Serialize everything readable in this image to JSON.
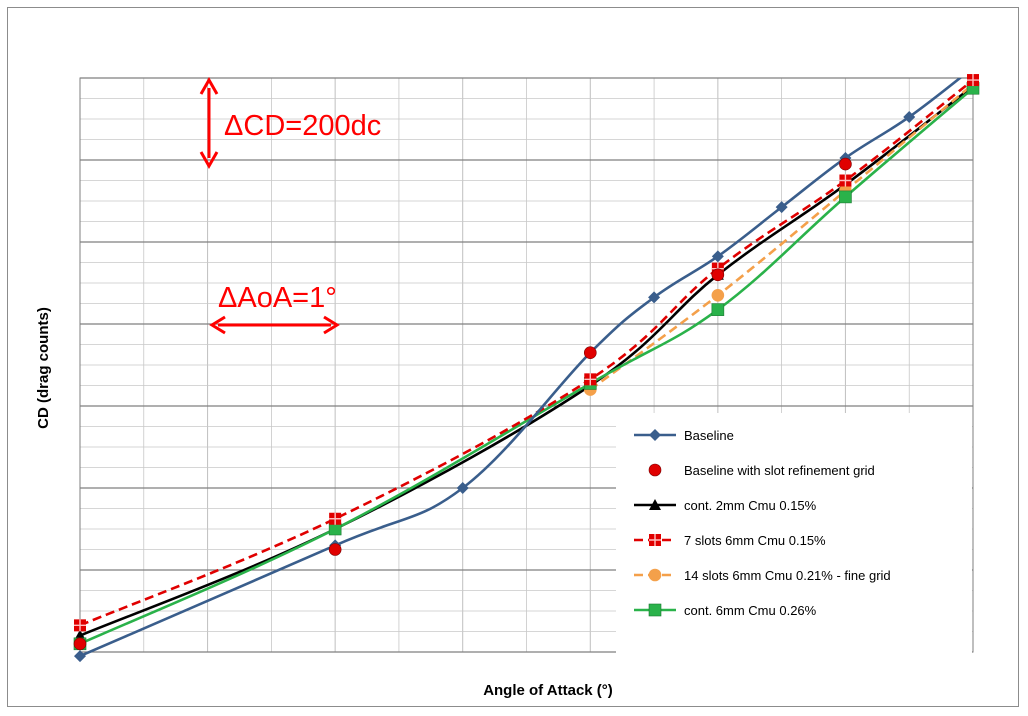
{
  "chart_data": {
    "type": "line",
    "title": "",
    "xlabel": "Angle of Attack (°)",
    "ylabel": "CD (drag counts)",
    "xlim": [
      0,
      7
    ],
    "ylim": [
      0,
      1400
    ],
    "grid": "on",
    "legend_position": "bottom-right",
    "annotations": [
      {
        "text": "ΔCD=200dc",
        "arrow": "vertical",
        "span": "200 drag counts"
      },
      {
        "text": "ΔAoA=1°",
        "arrow": "horizontal",
        "span": "1 degree"
      }
    ],
    "series": [
      {
        "name": "Baseline",
        "color": "#3a5e8c",
        "marker": "diamond",
        "dash": "solid",
        "x": [
          0,
          2,
          3,
          4,
          4.5,
          5,
          5.5,
          6,
          6.5,
          7
        ],
        "y": [
          -10,
          260,
          400,
          730,
          865,
          965,
          1085,
          1205,
          1305,
          1425
        ]
      },
      {
        "name": "Baseline with slot refinement grid",
        "color": "#e00000",
        "marker": "circle",
        "dash": "none",
        "x": [
          0,
          2,
          4,
          5,
          6
        ],
        "y": [
          20,
          250,
          730,
          920,
          1190
        ]
      },
      {
        "name": "cont. 2mm Cmu 0.15%",
        "color": "#000000",
        "marker": "triangle",
        "dash": "solid",
        "x": [
          0,
          2,
          4,
          5,
          6,
          7
        ],
        "y": [
          40,
          300,
          650,
          920,
          1140,
          1380
        ]
      },
      {
        "name": "7 slots 6mm Cmu 0.15%",
        "color": "#e00000",
        "marker": "square-cross",
        "dash": "dash",
        "x": [
          0,
          2,
          4,
          5,
          6,
          7
        ],
        "y": [
          65,
          325,
          665,
          935,
          1150,
          1395
        ]
      },
      {
        "name": "14 slots 6mm Cmu 0.21% - fine grid",
        "color": "#f4a04a",
        "marker": "circle",
        "dash": "dash",
        "x": [
          4,
          5,
          6,
          7
        ],
        "y": [
          640,
          870,
          1125,
          1385
        ]
      },
      {
        "name": "cont. 6mm Cmu 0.26%",
        "color": "#2ab24a",
        "marker": "square",
        "dash": "solid",
        "x": [
          0,
          2,
          4,
          5,
          6,
          7
        ],
        "y": [
          20,
          300,
          655,
          835,
          1110,
          1375
        ]
      }
    ]
  }
}
